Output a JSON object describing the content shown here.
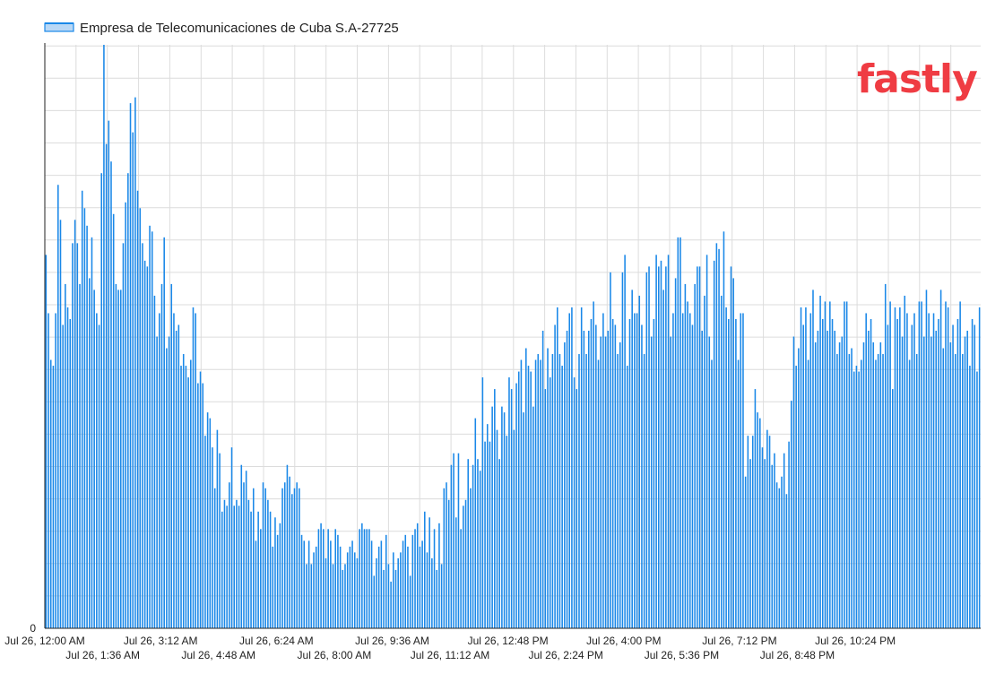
{
  "logo": {
    "text": "fastly"
  },
  "colors": {
    "series": "#1a88e8",
    "series_light": "#b9d8f6",
    "grid": "#dcdcdc",
    "axis": "#222222",
    "brand": "#ef3c43"
  },
  "chart_data": {
    "type": "bar",
    "legend_position": "top-left",
    "grid": true,
    "ylim": [
      0,
      100
    ],
    "y_tick_labels": [
      "0"
    ],
    "x_tick_labels": [
      "Jul 26, 12:00 AM",
      "Jul 26, 1:36 AM",
      "Jul 26, 3:12 AM",
      "Jul 26, 4:48 AM",
      "Jul 26, 6:24 AM",
      "Jul 26, 8:00 AM",
      "Jul 26, 9:36 AM",
      "Jul 26, 11:12 AM",
      "Jul 26, 12:48 PM",
      "Jul 26, 2:24 PM",
      "Jul 26, 4:00 PM",
      "Jul 26, 5:36 PM",
      "Jul 26, 7:12 PM",
      "Jul 26, 8:48 PM",
      "Jul 26, 10:24 PM"
    ],
    "x_minutes_per_bar": 4,
    "series": [
      {
        "name": "Empresa de Telecomunicaciones de Cuba S.A-27725",
        "values": [
          64,
          54,
          46,
          45,
          54,
          76,
          70,
          52,
          59,
          55,
          53,
          66,
          70,
          66,
          59,
          75,
          72,
          69,
          60,
          67,
          58,
          54,
          52,
          78,
          100,
          83,
          87,
          80,
          71,
          59,
          58,
          58,
          66,
          73,
          78,
          90,
          85,
          91,
          75,
          72,
          66,
          63,
          62,
          69,
          68,
          57,
          50,
          54,
          59,
          67,
          48,
          50,
          59,
          54,
          51,
          52,
          45,
          47,
          45,
          43,
          46,
          55,
          54,
          42,
          44,
          42,
          33,
          37,
          36,
          31,
          24,
          34,
          30,
          20,
          22,
          21,
          25,
          31,
          21,
          22,
          21,
          28,
          25,
          27,
          22,
          20,
          24,
          15,
          20,
          17,
          25,
          24,
          22,
          20,
          14,
          19,
          16,
          18,
          24,
          25,
          28,
          26,
          23,
          24,
          25,
          24,
          16,
          15,
          11,
          15,
          11,
          13,
          14,
          17,
          18,
          17,
          12,
          17,
          15,
          11,
          17,
          16,
          14,
          10,
          11,
          13,
          14,
          15,
          13,
          12,
          17,
          18,
          17,
          17,
          17,
          15,
          9,
          12,
          14,
          15,
          10,
          16,
          11,
          8,
          13,
          10,
          12,
          13,
          15,
          16,
          14,
          9,
          16,
          17,
          18,
          14,
          15,
          20,
          13,
          19,
          12,
          17,
          10,
          18,
          11,
          24,
          25,
          22,
          28,
          30,
          19,
          30,
          17,
          21,
          22,
          29,
          24,
          28,
          36,
          29,
          27,
          43,
          32,
          35,
          32,
          38,
          41,
          34,
          29,
          38,
          37,
          33,
          43,
          41,
          34,
          42,
          44,
          46,
          37,
          48,
          45,
          44,
          38,
          46,
          47,
          46,
          51,
          41,
          48,
          43,
          47,
          52,
          55,
          47,
          45,
          49,
          51,
          54,
          55,
          43,
          41,
          47,
          55,
          51,
          47,
          51,
          53,
          56,
          52,
          46,
          50,
          54,
          50,
          51,
          61,
          53,
          52,
          47,
          49,
          61,
          64,
          45,
          53,
          58,
          54,
          54,
          57,
          52,
          47,
          61,
          62,
          50,
          53,
          64,
          62,
          63,
          58,
          62,
          64,
          50,
          54,
          60,
          67,
          67,
          54,
          59,
          56,
          54,
          52,
          59,
          62,
          62,
          51,
          57,
          64,
          50,
          46,
          63,
          66,
          65,
          57,
          68,
          55,
          53,
          62,
          60,
          53,
          46,
          54,
          54,
          26,
          33,
          29,
          33,
          41,
          37,
          36,
          31,
          29,
          34,
          33,
          28,
          30,
          25,
          24,
          26,
          30,
          23,
          32,
          39,
          50,
          45,
          48,
          55,
          52,
          55,
          46,
          54,
          58,
          49,
          51,
          57,
          53,
          56,
          51,
          56,
          53,
          51,
          47,
          49,
          50,
          56,
          56,
          47,
          48,
          44,
          45,
          44,
          46,
          49,
          54,
          51,
          53,
          49,
          46,
          47,
          49,
          47,
          59,
          52,
          56,
          41,
          55,
          53,
          55,
          50,
          57,
          54,
          46,
          52,
          54,
          47,
          56,
          56,
          50,
          58,
          54,
          50,
          54,
          51,
          53,
          58,
          48,
          56,
          55,
          49,
          52,
          47,
          53,
          56,
          47,
          50,
          51,
          45,
          53,
          52,
          44,
          55
        ]
      }
    ]
  }
}
